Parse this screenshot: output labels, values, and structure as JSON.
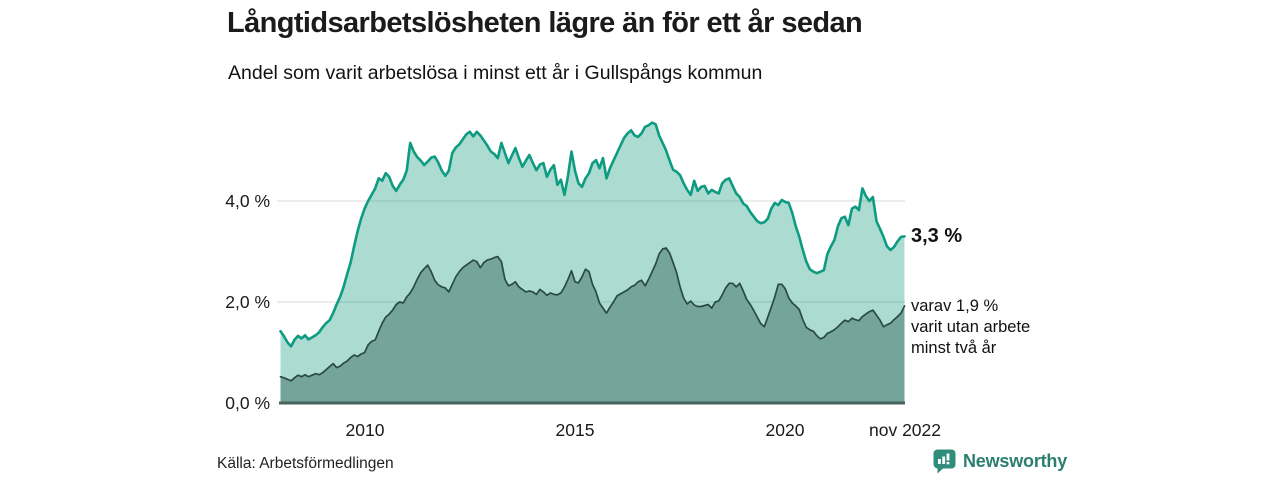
{
  "chart_data": {
    "type": "area",
    "title": "Långtidsarbetslösheten lägre än för ett år sedan",
    "subtitle": "Andel som varit arbetslösa i minst ett år i Gullspångs kommun",
    "unit": "%",
    "frequency": "monthly",
    "x_start": "2008-01",
    "x_end": "2022-11",
    "ylim": [
      0,
      5.8
    ],
    "grid": true,
    "legend_position": "none",
    "y_ticks": [
      {
        "value": 0,
        "label": "0,0 %"
      },
      {
        "value": 2,
        "label": "2,0 %"
      },
      {
        "value": 4,
        "label": "4,0 %"
      }
    ],
    "x_ticks": [
      {
        "month_index": 24,
        "label": "2010"
      },
      {
        "month_index": 84,
        "label": "2015"
      },
      {
        "month_index": 144,
        "label": "2020"
      },
      {
        "month_index": 178,
        "label": "nov 2022"
      }
    ],
    "series": [
      {
        "name": "Andel arbetslösa minst ett år (totalt)",
        "latest_value": 3.3,
        "values": [
          1.42,
          1.32,
          1.2,
          1.12,
          1.25,
          1.33,
          1.28,
          1.34,
          1.26,
          1.3,
          1.34,
          1.4,
          1.5,
          1.58,
          1.64,
          1.78,
          1.95,
          2.1,
          2.3,
          2.55,
          2.78,
          3.1,
          3.4,
          3.65,
          3.85,
          4.0,
          4.12,
          4.25,
          4.45,
          4.4,
          4.55,
          4.48,
          4.3,
          4.2,
          4.32,
          4.42,
          4.6,
          5.15,
          4.98,
          4.87,
          4.8,
          4.71,
          4.78,
          4.86,
          4.88,
          4.76,
          4.6,
          4.5,
          4.6,
          4.95,
          5.06,
          5.12,
          5.22,
          5.32,
          5.37,
          5.28,
          5.37,
          5.3,
          5.2,
          5.1,
          4.98,
          4.93,
          4.85,
          5.15,
          4.95,
          4.75,
          4.9,
          5.05,
          4.85,
          4.68,
          4.8,
          4.91,
          4.75,
          4.61,
          4.72,
          4.75,
          4.48,
          4.62,
          4.71,
          4.32,
          4.42,
          4.12,
          4.5,
          4.98,
          4.6,
          4.35,
          4.28,
          4.45,
          4.55,
          4.75,
          4.81,
          4.65,
          4.85,
          4.45,
          4.65,
          4.8,
          4.95,
          5.1,
          5.25,
          5.34,
          5.4,
          5.3,
          5.27,
          5.34,
          5.47,
          5.5,
          5.55,
          5.52,
          5.3,
          5.15,
          5.0,
          4.8,
          4.62,
          4.58,
          4.51,
          4.35,
          4.22,
          4.12,
          4.4,
          4.2,
          4.28,
          4.3,
          4.15,
          4.22,
          4.18,
          4.15,
          4.35,
          4.42,
          4.45,
          4.3,
          4.15,
          4.08,
          3.95,
          3.9,
          3.78,
          3.69,
          3.6,
          3.56,
          3.58,
          3.65,
          3.85,
          3.96,
          3.92,
          4.02,
          3.98,
          3.96,
          3.76,
          3.5,
          3.29,
          3.03,
          2.8,
          2.65,
          2.6,
          2.57,
          2.6,
          2.63,
          2.95,
          3.1,
          3.23,
          3.5,
          3.66,
          3.69,
          3.52,
          3.85,
          3.89,
          3.82,
          4.25,
          4.1,
          4.0,
          4.08,
          3.6,
          3.45,
          3.29,
          3.1,
          3.03,
          3.09,
          3.2,
          3.29,
          3.3
        ]
      },
      {
        "name": "varav utan arbete minst två år",
        "latest_value": 1.9,
        "values": [
          0.52,
          0.5,
          0.47,
          0.44,
          0.5,
          0.55,
          0.52,
          0.56,
          0.52,
          0.55,
          0.58,
          0.56,
          0.6,
          0.66,
          0.72,
          0.78,
          0.7,
          0.73,
          0.79,
          0.83,
          0.9,
          0.95,
          0.92,
          0.97,
          1.0,
          1.15,
          1.22,
          1.25,
          1.42,
          1.58,
          1.7,
          1.76,
          1.84,
          1.95,
          2.0,
          1.98,
          2.1,
          2.18,
          2.3,
          2.45,
          2.58,
          2.66,
          2.73,
          2.6,
          2.43,
          2.34,
          2.3,
          2.28,
          2.2,
          2.35,
          2.5,
          2.6,
          2.68,
          2.73,
          2.78,
          2.83,
          2.8,
          2.68,
          2.78,
          2.83,
          2.85,
          2.88,
          2.9,
          2.8,
          2.45,
          2.32,
          2.35,
          2.4,
          2.3,
          2.25,
          2.2,
          2.22,
          2.2,
          2.15,
          2.25,
          2.2,
          2.13,
          2.18,
          2.15,
          2.14,
          2.18,
          2.3,
          2.45,
          2.62,
          2.4,
          2.38,
          2.5,
          2.65,
          2.6,
          2.35,
          2.2,
          1.98,
          1.88,
          1.78,
          1.9,
          2.0,
          2.12,
          2.16,
          2.2,
          2.24,
          2.3,
          2.33,
          2.4,
          2.43,
          2.32,
          2.45,
          2.6,
          2.75,
          2.95,
          3.05,
          3.07,
          2.97,
          2.78,
          2.58,
          2.3,
          2.08,
          1.96,
          2.02,
          1.94,
          1.91,
          1.91,
          1.93,
          1.95,
          1.88,
          2.0,
          2.02,
          2.14,
          2.28,
          2.37,
          2.37,
          2.3,
          2.37,
          2.22,
          2.05,
          1.95,
          1.83,
          1.7,
          1.57,
          1.51,
          1.7,
          1.9,
          2.1,
          2.35,
          2.35,
          2.26,
          2.08,
          1.98,
          1.92,
          1.85,
          1.65,
          1.5,
          1.45,
          1.42,
          1.33,
          1.27,
          1.3,
          1.38,
          1.41,
          1.45,
          1.51,
          1.58,
          1.64,
          1.61,
          1.68,
          1.65,
          1.63,
          1.71,
          1.76,
          1.81,
          1.84,
          1.74,
          1.64,
          1.51,
          1.55,
          1.58,
          1.65,
          1.71,
          1.78,
          1.92
        ]
      }
    ],
    "annotations": {
      "latest_label": "3,3 %",
      "note_lines": [
        "varav 1,9 %",
        "varit utan arbete",
        "minst två år"
      ]
    }
  },
  "footer": {
    "source": "Källa: Arbetsförmedlingen",
    "brand": "Newsworthy"
  },
  "colors": {
    "line_total": "#0d9b81",
    "fill_total": "rgba(16,153,126,0.35)",
    "line_subset": "#2a4a44",
    "fill_subset": "#74a49c",
    "baseline": "#46635d",
    "gridline": "#d8d8d8",
    "brand_teal": "#2c7e71",
    "icon_teal": "#2f8d7c",
    "text": "#1a1a1a"
  }
}
